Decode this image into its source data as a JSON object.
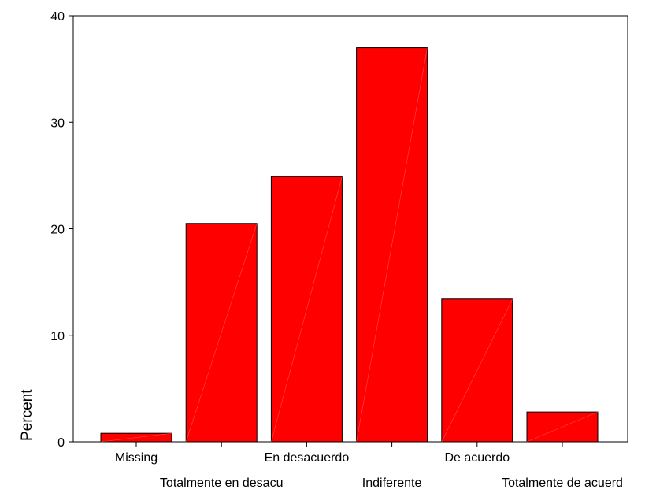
{
  "chart_data": {
    "type": "bar",
    "ylabel": "Percent",
    "xlabel": "",
    "ylim": [
      0,
      40
    ],
    "yticks": [
      0,
      10,
      20,
      30,
      40
    ],
    "grid": false,
    "bar_color": "#ff0000",
    "outline_color": "#000000",
    "categories": [
      "Missing",
      "Totalmente en desacu",
      "En desacuerdo",
      "Indiferente",
      "De acuerdo",
      "Totalmente de acuerd"
    ],
    "values": [
      0.8,
      20.5,
      24.9,
      37.0,
      13.4,
      2.8
    ]
  }
}
